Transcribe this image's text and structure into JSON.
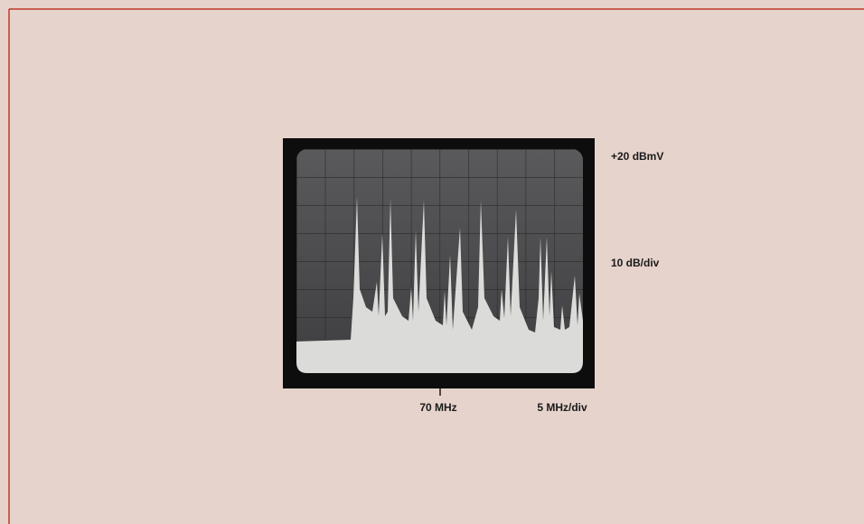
{
  "figure": {
    "labels": {
      "reference_level": "+20 dBmV",
      "vertical_scale": "10 dB/div",
      "center_frequency": "70 MHz",
      "horizontal_scale": "5 MHz/div"
    }
  }
}
